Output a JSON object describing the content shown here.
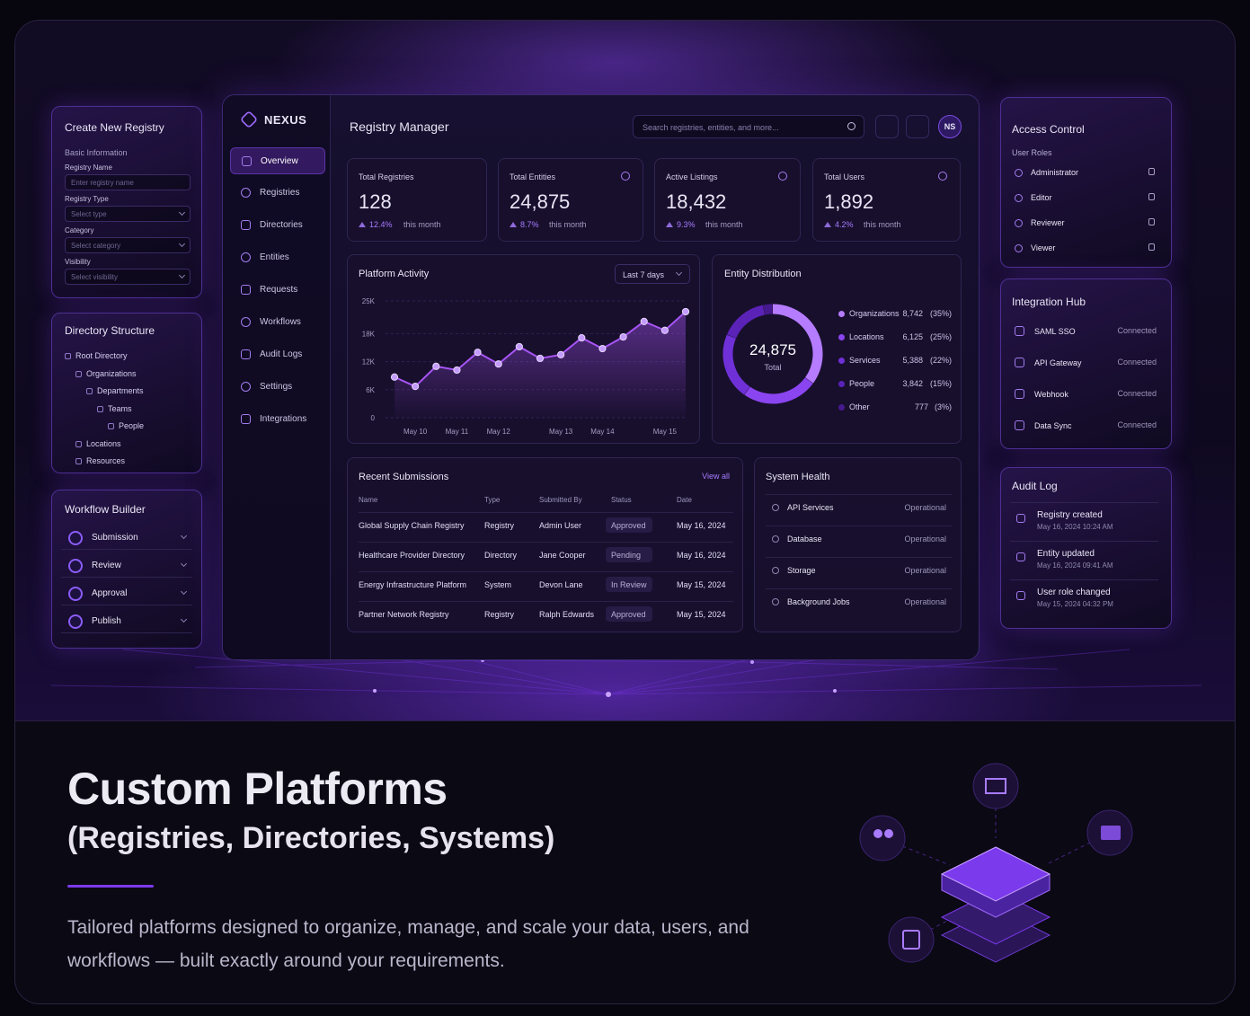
{
  "brand": "NEXUS",
  "create_registry": {
    "title": "Create New Registry",
    "section": "Basic Information",
    "fields": [
      {
        "label": "Registry Name",
        "placeholder": "Enter registry name"
      },
      {
        "label": "Registry Type",
        "placeholder": "Select type"
      },
      {
        "label": "Category",
        "placeholder": "Select category"
      },
      {
        "label": "Visibility",
        "placeholder": "Select visibility"
      }
    ]
  },
  "directory_structure": {
    "title": "Directory Structure",
    "tree": [
      {
        "label": "Root Directory",
        "children": [
          {
            "label": "Organizations",
            "children": [
              {
                "label": "Departments",
                "children": [
                  {
                    "label": "Teams",
                    "children": [
                      {
                        "label": "People"
                      }
                    ]
                  }
                ]
              }
            ]
          },
          {
            "label": "Locations"
          },
          {
            "label": "Resources"
          }
        ]
      }
    ]
  },
  "workflow_builder": {
    "title": "Workflow Builder",
    "steps": [
      "Submission",
      "Review",
      "Approval",
      "Publish"
    ]
  },
  "nav": {
    "items": [
      "Overview",
      "Registries",
      "Directories",
      "Entities",
      "Requests",
      "Workflows",
      "Audit Logs",
      "Settings",
      "Integrations"
    ]
  },
  "header": {
    "title": "Registry Manager",
    "search_placeholder": "Search registries, entities, and more...",
    "avatar": "NS"
  },
  "stats": [
    {
      "label": "Total Registries",
      "value": "128",
      "change": "12.4%",
      "period": "this month"
    },
    {
      "label": "Total Entities",
      "value": "24,875",
      "change": "8.7%",
      "period": "this month"
    },
    {
      "label": "Active Listings",
      "value": "18,432",
      "change": "9.3%",
      "period": "this month"
    },
    {
      "label": "Total Users",
      "value": "1,892",
      "change": "4.2%",
      "period": "this month"
    }
  ],
  "chart_data": [
    {
      "type": "line",
      "title": "Platform Activity",
      "range_selector": "Last 7 days",
      "categories": [
        null,
        "May 10",
        null,
        "May 11",
        null,
        "May 12",
        null,
        null,
        "May 13",
        null,
        "May 14",
        null,
        null,
        "May 15",
        null
      ],
      "values": [
        8700,
        6700,
        11000,
        10200,
        14000,
        11500,
        15200,
        12700,
        13500,
        17100,
        14800,
        17300,
        20600,
        18700,
        22700
      ],
      "color": "#a855f7",
      "ylim": [
        0,
        25000
      ],
      "yticks": [
        0,
        {
          "value": 6000,
          "label": "6K"
        },
        {
          "value": 12000,
          "label": "12K"
        },
        {
          "value": 18000,
          "label": "18K"
        },
        {
          "value": 25000,
          "label": "25K"
        }
      ],
      "grid": true
    },
    {
      "type": "donut",
      "title": "Entity Distribution",
      "center_value": "24,875",
      "center_label": "Total",
      "categories": [
        "Organizations",
        "Locations",
        "Services",
        "People",
        "Other"
      ],
      "values": [
        8742,
        6125,
        5388,
        3842,
        777
      ],
      "value_labels": [
        "8,742",
        "6,125",
        "5,388",
        "3,842",
        "777"
      ],
      "shares": [
        35,
        25,
        22,
        15,
        3
      ],
      "share_labels": [
        "(35%)",
        "(25%)",
        "(22%)",
        "(15%)",
        "(3%)"
      ],
      "colors": [
        "#b57cff",
        "#8b45f0",
        "#7030d8",
        "#5b22b8",
        "#47198f"
      ]
    }
  ],
  "recent_submissions": {
    "title": "Recent Submissions",
    "action": "View all",
    "columns": [
      "Name",
      "Type",
      "Submitted By",
      "Status",
      "Date"
    ],
    "rows": [
      [
        "Global Supply Chain Registry",
        "Registry",
        "Admin User",
        "Approved",
        "May 16, 2024"
      ],
      [
        "Healthcare Provider Directory",
        "Directory",
        "Jane Cooper",
        "Pending",
        "May 16, 2024"
      ],
      [
        "Energy Infrastructure Platform",
        "System",
        "Devon Lane",
        "In Review",
        "May 15, 2024"
      ],
      [
        "Partner Network Registry",
        "Registry",
        "Ralph Edwards",
        "Approved",
        "May 15, 2024"
      ]
    ]
  },
  "system_health": {
    "title": "System Health",
    "items": [
      {
        "name": "API Services",
        "status": "Operational"
      },
      {
        "name": "Database",
        "status": "Operational"
      },
      {
        "name": "Storage",
        "status": "Operational"
      },
      {
        "name": "Background Jobs",
        "status": "Operational"
      }
    ]
  },
  "access_control": {
    "title": "Access Control",
    "section": "User Roles",
    "roles": [
      "Administrator",
      "Editor",
      "Reviewer",
      "Viewer"
    ]
  },
  "integration_hub": {
    "title": "Integration Hub",
    "items": [
      {
        "name": "SAML SSO",
        "status": "Connected"
      },
      {
        "name": "API Gateway",
        "status": "Connected"
      },
      {
        "name": "Webhook",
        "status": "Connected"
      },
      {
        "name": "Data Sync",
        "status": "Connected"
      }
    ]
  },
  "audit_log": {
    "title": "Audit Log",
    "entries": [
      {
        "event": "Registry created",
        "time": "May 16, 2024 10:24 AM"
      },
      {
        "event": "Entity updated",
        "time": "May 16, 2024 09:41 AM"
      },
      {
        "event": "User role changed",
        "time": "May 15, 2024 04:32 PM"
      }
    ]
  },
  "hero": {
    "title": "Custom Platforms",
    "subtitle": "(Registries, Directories, Systems)",
    "description": "Tailored platforms designed to organize, manage, and scale your data, users, and workflows — built exactly around your requirements."
  }
}
